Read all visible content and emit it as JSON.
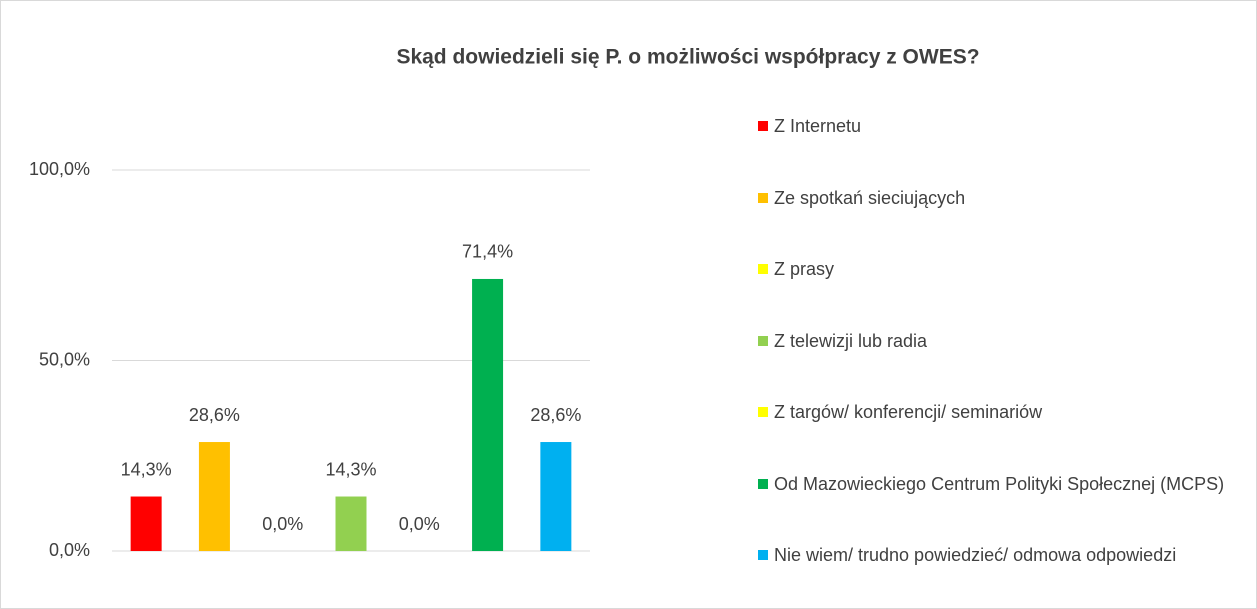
{
  "chart_data": {
    "type": "bar",
    "title": "Skąd dowiedzieli się P. o możliwości współpracy z OWES?",
    "categories": [
      "Z Internetu",
      "Ze spotkań sieciujących",
      "Z prasy",
      "Z telewizji lub radia",
      "Z targów/ konferencji/ seminariów",
      "Od Mazowieckiego Centrum Polityki Społecznej (MCPS)",
      "Nie wiem/ trudno powiedzieć/ odmowa odpowiedzi"
    ],
    "values": [
      14.3,
      28.6,
      0,
      14.3,
      0,
      71.4,
      28.6
    ],
    "value_labels": [
      "14,3%",
      "28,6%",
      "0,0%",
      "14,3%",
      "0,0%",
      "71,4%",
      "28,6%"
    ],
    "colors": [
      "#ff0000",
      "#ffc000",
      "#ffff00",
      "#92d050",
      "#ffff00",
      "#00b050",
      "#00b0f0"
    ],
    "ylim": [
      0,
      100
    ],
    "yticks": [
      {
        "value": 0,
        "label": "0,0%"
      },
      {
        "value": 50,
        "label": "50,0%"
      },
      {
        "value": 100,
        "label": "100,0%"
      }
    ],
    "grid": true,
    "legend": "right"
  }
}
